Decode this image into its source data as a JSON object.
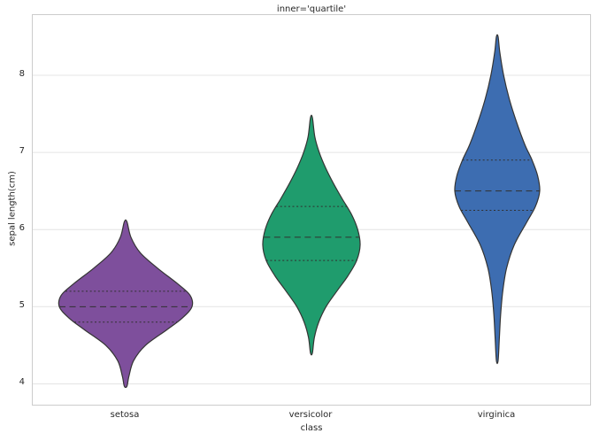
{
  "chart_data": {
    "type": "violin",
    "title": "inner='quartile'",
    "xlabel": "class",
    "ylabel": "sepal length(cm)",
    "categories": [
      "setosa",
      "versicolor",
      "virginica"
    ],
    "yticks": [
      4,
      5,
      6,
      7,
      8
    ],
    "ylim": [
      3.73,
      8.78
    ],
    "grid": true,
    "grid_color": "#e4e4e4",
    "border_color": "#cccccc",
    "edge_color": "#343434",
    "inner_line_color": "#303030",
    "background": "#ffffff",
    "series": [
      {
        "name": "setosa",
        "color": "#7e4f9c",
        "min": 3.97,
        "max": 6.1,
        "q1": 4.8,
        "median": 5.0,
        "q3": 5.2,
        "rel_width": 0.714,
        "profile": [
          [
            3.97,
            0.02
          ],
          [
            4.1,
            0.05
          ],
          [
            4.3,
            0.12
          ],
          [
            4.5,
            0.3
          ],
          [
            4.7,
            0.62
          ],
          [
            4.85,
            0.85
          ],
          [
            5.0,
            1.0
          ],
          [
            5.15,
            0.97
          ],
          [
            5.3,
            0.78
          ],
          [
            5.5,
            0.48
          ],
          [
            5.7,
            0.22
          ],
          [
            5.9,
            0.08
          ],
          [
            6.1,
            0.02
          ]
        ]
      },
      {
        "name": "versicolor",
        "color": "#1f9c6d",
        "min": 4.4,
        "max": 7.45,
        "q1": 5.6,
        "median": 5.9,
        "q3": 6.3,
        "rel_width": 0.524,
        "profile": [
          [
            4.4,
            0.02
          ],
          [
            4.6,
            0.06
          ],
          [
            4.8,
            0.15
          ],
          [
            5.0,
            0.3
          ],
          [
            5.2,
            0.52
          ],
          [
            5.4,
            0.75
          ],
          [
            5.6,
            0.93
          ],
          [
            5.8,
            1.0
          ],
          [
            6.0,
            0.95
          ],
          [
            6.2,
            0.82
          ],
          [
            6.4,
            0.63
          ],
          [
            6.6,
            0.45
          ],
          [
            6.8,
            0.29
          ],
          [
            7.0,
            0.16
          ],
          [
            7.2,
            0.07
          ],
          [
            7.45,
            0.02
          ]
        ]
      },
      {
        "name": "virginica",
        "color": "#3d6db1",
        "min": 4.3,
        "max": 8.5,
        "q1": 6.25,
        "median": 6.5,
        "q3": 6.9,
        "rel_width": 0.457,
        "profile": [
          [
            4.3,
            0.02
          ],
          [
            4.6,
            0.05
          ],
          [
            4.9,
            0.08
          ],
          [
            5.2,
            0.13
          ],
          [
            5.5,
            0.22
          ],
          [
            5.8,
            0.4
          ],
          [
            6.1,
            0.7
          ],
          [
            6.3,
            0.9
          ],
          [
            6.5,
            1.0
          ],
          [
            6.7,
            0.95
          ],
          [
            6.9,
            0.82
          ],
          [
            7.1,
            0.65
          ],
          [
            7.4,
            0.45
          ],
          [
            7.7,
            0.28
          ],
          [
            8.0,
            0.15
          ],
          [
            8.3,
            0.06
          ],
          [
            8.5,
            0.02
          ]
        ]
      }
    ]
  }
}
